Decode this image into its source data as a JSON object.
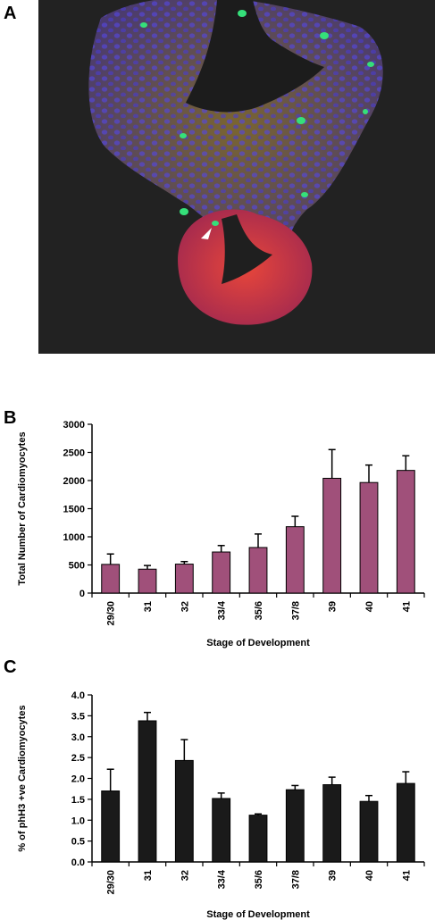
{
  "panels": {
    "a": "A",
    "b": "B",
    "c": "C"
  },
  "image_colors": {
    "background": "#222222",
    "nuclei": "#4a3fd0",
    "tissue": "#6e5a2a",
    "myocardium": "#d83a2e",
    "marker": "#35e07a",
    "arrowhead": "#ffffff"
  },
  "chart_data": [
    {
      "type": "bar",
      "categories": [
        "29/30",
        "31",
        "32",
        "33/4",
        "35/6",
        "37/8",
        "39",
        "40",
        "41"
      ],
      "values": [
        510,
        425,
        515,
        730,
        810,
        1180,
        2040,
        1965,
        2180
      ],
      "errors": [
        185,
        65,
        45,
        115,
        240,
        185,
        510,
        310,
        260
      ],
      "xlabel": "Stage of Development",
      "ylabel": "Total Number of Cardiomyocytes",
      "ylim": [
        0,
        3000
      ],
      "yticks": [
        "0",
        "500",
        "1000",
        "1500",
        "2000",
        "2500",
        "3000"
      ],
      "bar_color": "#a0507a",
      "grid": false
    },
    {
      "type": "bar",
      "categories": [
        "29/30",
        "31",
        "32",
        "33/4",
        "35/6",
        "37/8",
        "39",
        "40",
        "41"
      ],
      "values": [
        1.7,
        3.38,
        2.43,
        1.52,
        1.12,
        1.73,
        1.85,
        1.45,
        1.88
      ],
      "errors": [
        0.52,
        0.2,
        0.5,
        0.13,
        0.03,
        0.1,
        0.18,
        0.14,
        0.28
      ],
      "xlabel": "Stage of Development",
      "ylabel": "% of phH3 +ve Cardiomyocytes",
      "ylim": [
        0,
        4
      ],
      "yticks": [
        "0.0",
        "0.5",
        "1.0",
        "1.5",
        "2.0",
        "2.5",
        "3.0",
        "3.5",
        "4.0"
      ],
      "bar_color": "#1a1a1a",
      "grid": false
    }
  ]
}
